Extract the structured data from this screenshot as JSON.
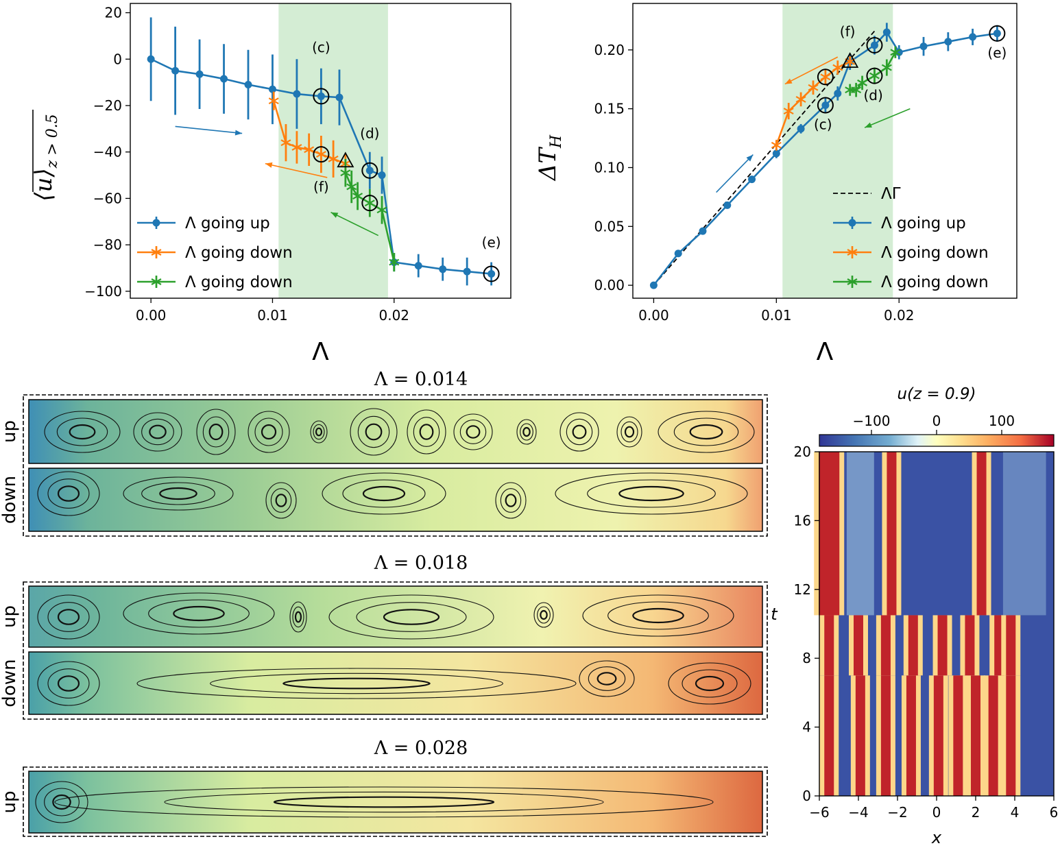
{
  "chart_data": [
    {
      "type": "line",
      "panel": "top-left",
      "xlabel": "Λ",
      "ylabel": "⟨u⟩",
      "ylabel_sub": "z > 0.5",
      "xlim": [
        -0.0017,
        0.0296
      ],
      "ylim": [
        -103,
        24
      ],
      "xticks": [
        0.0,
        0.01,
        0.02
      ],
      "xtick_labels": [
        "0.00",
        "0.01",
        "0.02"
      ],
      "yticks": [
        20,
        0,
        -20,
        -40,
        -60,
        -80,
        -100
      ],
      "ytick_labels": [
        "20",
        "0",
        "−20",
        "−40",
        "−60",
        "−80",
        "−100"
      ],
      "shaded_band": [
        0.0105,
        0.0195
      ],
      "legend_position": "lower-left",
      "series": [
        {
          "name": "Λ going up",
          "color": "#1f77b4",
          "marker": "o",
          "x": [
            0.0,
            0.002,
            0.004,
            0.006,
            0.008,
            0.01,
            0.012,
            0.014,
            0.0155,
            0.018,
            0.019,
            0.02,
            0.022,
            0.024,
            0.026,
            0.028
          ],
          "y": [
            0,
            -5,
            -6.5,
            -8.5,
            -11,
            -13,
            -15,
            -16,
            -16.5,
            -48,
            -50,
            -87.5,
            -89,
            -90.5,
            -91.5,
            -92.5
          ],
          "err": [
            18,
            19,
            15,
            15,
            15,
            15,
            15,
            12,
            12,
            8,
            8,
            4,
            5,
            5,
            6,
            5
          ]
        },
        {
          "name": "Λ going down",
          "color": "#ff7f0e",
          "marker": "*",
          "x": [
            0.0101,
            0.0111,
            0.012,
            0.013,
            0.014,
            0.015,
            0.016
          ],
          "y": [
            -18,
            -36,
            -38,
            -39,
            -41,
            -43,
            -45
          ],
          "err": [
            4,
            8,
            7,
            7,
            8,
            8,
            4
          ]
        },
        {
          "name": "Λ going down",
          "color": "#2ca02c",
          "marker": "*",
          "x": [
            0.016,
            0.0165,
            0.017,
            0.018,
            0.019,
            0.02
          ],
          "y": [
            -49,
            -55,
            -59,
            -62,
            -65,
            -87.5
          ],
          "err": [
            6,
            7,
            6,
            6,
            6,
            4
          ]
        }
      ],
      "circles": [
        [
          0.014,
          -16
        ],
        [
          0.014,
          -41
        ],
        [
          0.018,
          -48
        ],
        [
          0.018,
          -62
        ],
        [
          0.028,
          -92.5
        ]
      ],
      "triangle": [
        0.016,
        -44
      ],
      "annotations": [
        {
          "text": "(c)",
          "x": 0.014,
          "y": 3
        },
        {
          "text": "(d)",
          "x": 0.018,
          "y": -34
        },
        {
          "text": "(f)",
          "x": 0.014,
          "y": -57
        },
        {
          "text": "(e)",
          "x": 0.028,
          "y": -81
        }
      ],
      "arrows": [
        {
          "color": "#1f77b4",
          "from": [
            0.002,
            -29
          ],
          "to": [
            0.0075,
            -32
          ]
        },
        {
          "color": "#ff7f0e",
          "from": [
            0.0145,
            -51
          ],
          "to": [
            0.0094,
            -45
          ]
        },
        {
          "color": "#2ca02c",
          "from": [
            0.0187,
            -76
          ],
          "to": [
            0.0148,
            -66
          ]
        }
      ]
    },
    {
      "type": "line",
      "panel": "top-right",
      "xlabel": "Λ",
      "ylabel": "ΔT",
      "ylabel_sub": "H",
      "xlim": [
        -0.0017,
        0.0296
      ],
      "ylim": [
        -0.011,
        0.2395
      ],
      "xticks": [
        0.0,
        0.01,
        0.02
      ],
      "xtick_labels": [
        "0.00",
        "0.01",
        "0.02"
      ],
      "yticks": [
        0.0,
        0.05,
        0.1,
        0.15,
        0.2
      ],
      "ytick_labels": [
        "0.00",
        "0.05",
        "0.10",
        "0.15",
        "0.20"
      ],
      "shaded_band": [
        0.0105,
        0.0195
      ],
      "legend_position": "lower-right",
      "legend_extra": "ΛΓ",
      "series": [
        {
          "name": "Λ going up",
          "color": "#1f77b4",
          "marker": "o",
          "x": [
            0.0,
            0.002,
            0.004,
            0.006,
            0.008,
            0.01,
            0.012,
            0.014,
            0.015,
            0.016,
            0.018,
            0.019,
            0.02,
            0.022,
            0.024,
            0.026,
            0.028
          ],
          "y": [
            0.0,
            0.027,
            0.046,
            0.068,
            0.09,
            0.112,
            0.133,
            0.153,
            0.163,
            0.19,
            0.204,
            0.215,
            0.198,
            0.203,
            0.207,
            0.211,
            0.214
          ],
          "err": [
            0.002,
            0.003,
            0.003,
            0.003,
            0.003,
            0.004,
            0.004,
            0.006,
            0.006,
            0.007,
            0.008,
            0.008,
            0.006,
            0.008,
            0.008,
            0.007,
            0.007
          ]
        },
        {
          "name": "Λ going down",
          "color": "#ff7f0e",
          "marker": "*",
          "x": [
            0.01,
            0.011,
            0.012,
            0.013,
            0.014,
            0.015,
            0.016
          ],
          "y": [
            0.119,
            0.148,
            0.158,
            0.168,
            0.177,
            0.185,
            0.19
          ],
          "err": [
            0.004,
            0.007,
            0.006,
            0.006,
            0.007,
            0.006,
            0.004
          ]
        },
        {
          "name": "Λ going down",
          "color": "#2ca02c",
          "marker": "*",
          "x": [
            0.016,
            0.0165,
            0.017,
            0.018,
            0.019,
            0.0197
          ],
          "y": [
            0.166,
            0.166,
            0.172,
            0.178,
            0.185,
            0.198
          ],
          "err": [
            0.005,
            0.006,
            0.006,
            0.007,
            0.007,
            0.005
          ]
        }
      ],
      "reference_line": {
        "name": "ΛΓ",
        "x": [
          0.0,
          0.018
        ],
        "y": [
          0.0,
          0.216
        ]
      },
      "circles": [
        [
          0.014,
          0.153
        ],
        [
          0.014,
          0.177
        ],
        [
          0.018,
          0.204
        ],
        [
          0.018,
          0.178
        ],
        [
          0.028,
          0.214
        ]
      ],
      "triangle": [
        0.016,
        0.19
      ],
      "annotations": [
        {
          "text": "(f)",
          "x": 0.0158,
          "y": 0.2115
        },
        {
          "text": "(c)",
          "x": 0.0138,
          "y": 0.1325
        },
        {
          "text": "(d)",
          "x": 0.0179,
          "y": 0.1575
        },
        {
          "text": "(e)",
          "x": 0.028,
          "y": 0.1935
        }
      ],
      "arrows": [
        {
          "color": "#1f77b4",
          "from": [
            0.0051,
            0.079
          ],
          "to": [
            0.0081,
            0.111
          ]
        },
        {
          "color": "#ff7f0e",
          "from": [
            0.015,
            0.194
          ],
          "to": [
            0.0107,
            0.171
          ]
        },
        {
          "color": "#2ca02c",
          "from": [
            0.0209,
            0.15
          ],
          "to": [
            0.0172,
            0.134
          ]
        }
      ]
    },
    {
      "type": "heatmap",
      "panel": "snapshots",
      "titles": [
        "Λ = 0.014",
        "Λ = 0.018",
        "Λ = 0.028"
      ],
      "row_labels": [
        "up",
        "down",
        "up",
        "down",
        "up"
      ]
    },
    {
      "type": "heatmap",
      "panel": "space-time",
      "title": "u(z = 0.9)",
      "colorbar_ticks": [
        "−100",
        "0",
        "100"
      ],
      "colorbar_values": [
        -100,
        0,
        100
      ],
      "colorbar_range": [
        -180,
        180
      ],
      "xlabel": "x",
      "ylabel": "t",
      "xlim": [
        -6,
        6
      ],
      "ylim": [
        0,
        20
      ],
      "xticks": [
        -6,
        -4,
        -2,
        0,
        2,
        4,
        6
      ],
      "xtick_labels": [
        "−6",
        "−4",
        "−2",
        "0",
        "2",
        "4",
        "6"
      ],
      "yticks": [
        0,
        4,
        8,
        12,
        16,
        20
      ],
      "ytick_labels": [
        "0",
        "4",
        "8",
        "12",
        "16",
        "20"
      ],
      "regimes": [
        {
          "t_range": [
            0,
            7
          ],
          "red_bands_x": [
            -5.5,
            -3.9,
            -2.6,
            -1.3,
            0.1,
            1.1,
            2.0,
            2.9,
            3.8
          ]
        },
        {
          "t_range": [
            7,
            10.5
          ],
          "red_bands_x": [
            -5.5,
            -4.0,
            -2.6,
            -1.2,
            0.3,
            1.7,
            3.2,
            3.8
          ]
        },
        {
          "t_range": [
            10.5,
            20
          ],
          "red_bands_x": [
            -5.5,
            -2.3,
            2.3
          ]
        }
      ]
    }
  ]
}
